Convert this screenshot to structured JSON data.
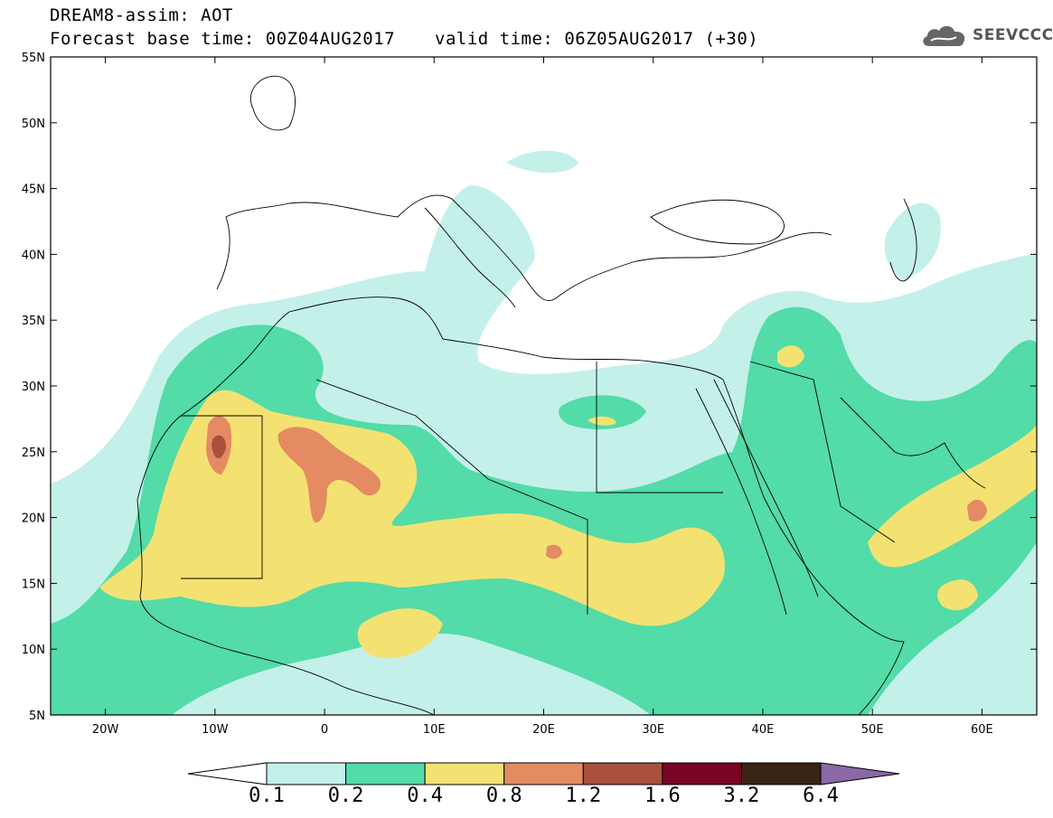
{
  "header": {
    "title": "DREAM8-assim: AOT",
    "forecast_base": "Forecast base time: 00Z04AUG2017",
    "valid_time": "valid time: 06Z05AUG2017 (+30)"
  },
  "logo": {
    "icon": "cloud-icon",
    "text": "SEEVCCC"
  },
  "map": {
    "lon_range": [
      -25,
      65
    ],
    "lat_range": [
      5,
      55
    ],
    "lon_ticks": [
      {
        "lon": -20,
        "label": "20W"
      },
      {
        "lon": -10,
        "label": "10W"
      },
      {
        "lon": 0,
        "label": "0"
      },
      {
        "lon": 10,
        "label": "10E"
      },
      {
        "lon": 20,
        "label": "20E"
      },
      {
        "lon": 30,
        "label": "30E"
      },
      {
        "lon": 40,
        "label": "40E"
      },
      {
        "lon": 50,
        "label": "50E"
      },
      {
        "lon": 60,
        "label": "60E"
      }
    ],
    "lat_ticks": [
      {
        "lat": 55,
        "label": "55N"
      },
      {
        "lat": 50,
        "label": "50N"
      },
      {
        "lat": 45,
        "label": "45N"
      },
      {
        "lat": 40,
        "label": "40N"
      },
      {
        "lat": 35,
        "label": "35N"
      },
      {
        "lat": 30,
        "label": "30N"
      },
      {
        "lat": 25,
        "label": "25N"
      },
      {
        "lat": 20,
        "label": "20N"
      },
      {
        "lat": 15,
        "label": "15N"
      },
      {
        "lat": 10,
        "label": "10N"
      },
      {
        "lat": 5,
        "label": "5N"
      }
    ]
  },
  "colorbar": {
    "levels": [
      "0.1",
      "0.2",
      "0.4",
      "0.8",
      "1.2",
      "1.6",
      "3.2",
      "6.4"
    ],
    "colors": [
      "#ffffff",
      "#c4f0ea",
      "#53dba8",
      "#f3e272",
      "#e48b63",
      "#a8503b",
      "#7a0424",
      "#3a2414",
      "#8a69a6"
    ]
  }
}
